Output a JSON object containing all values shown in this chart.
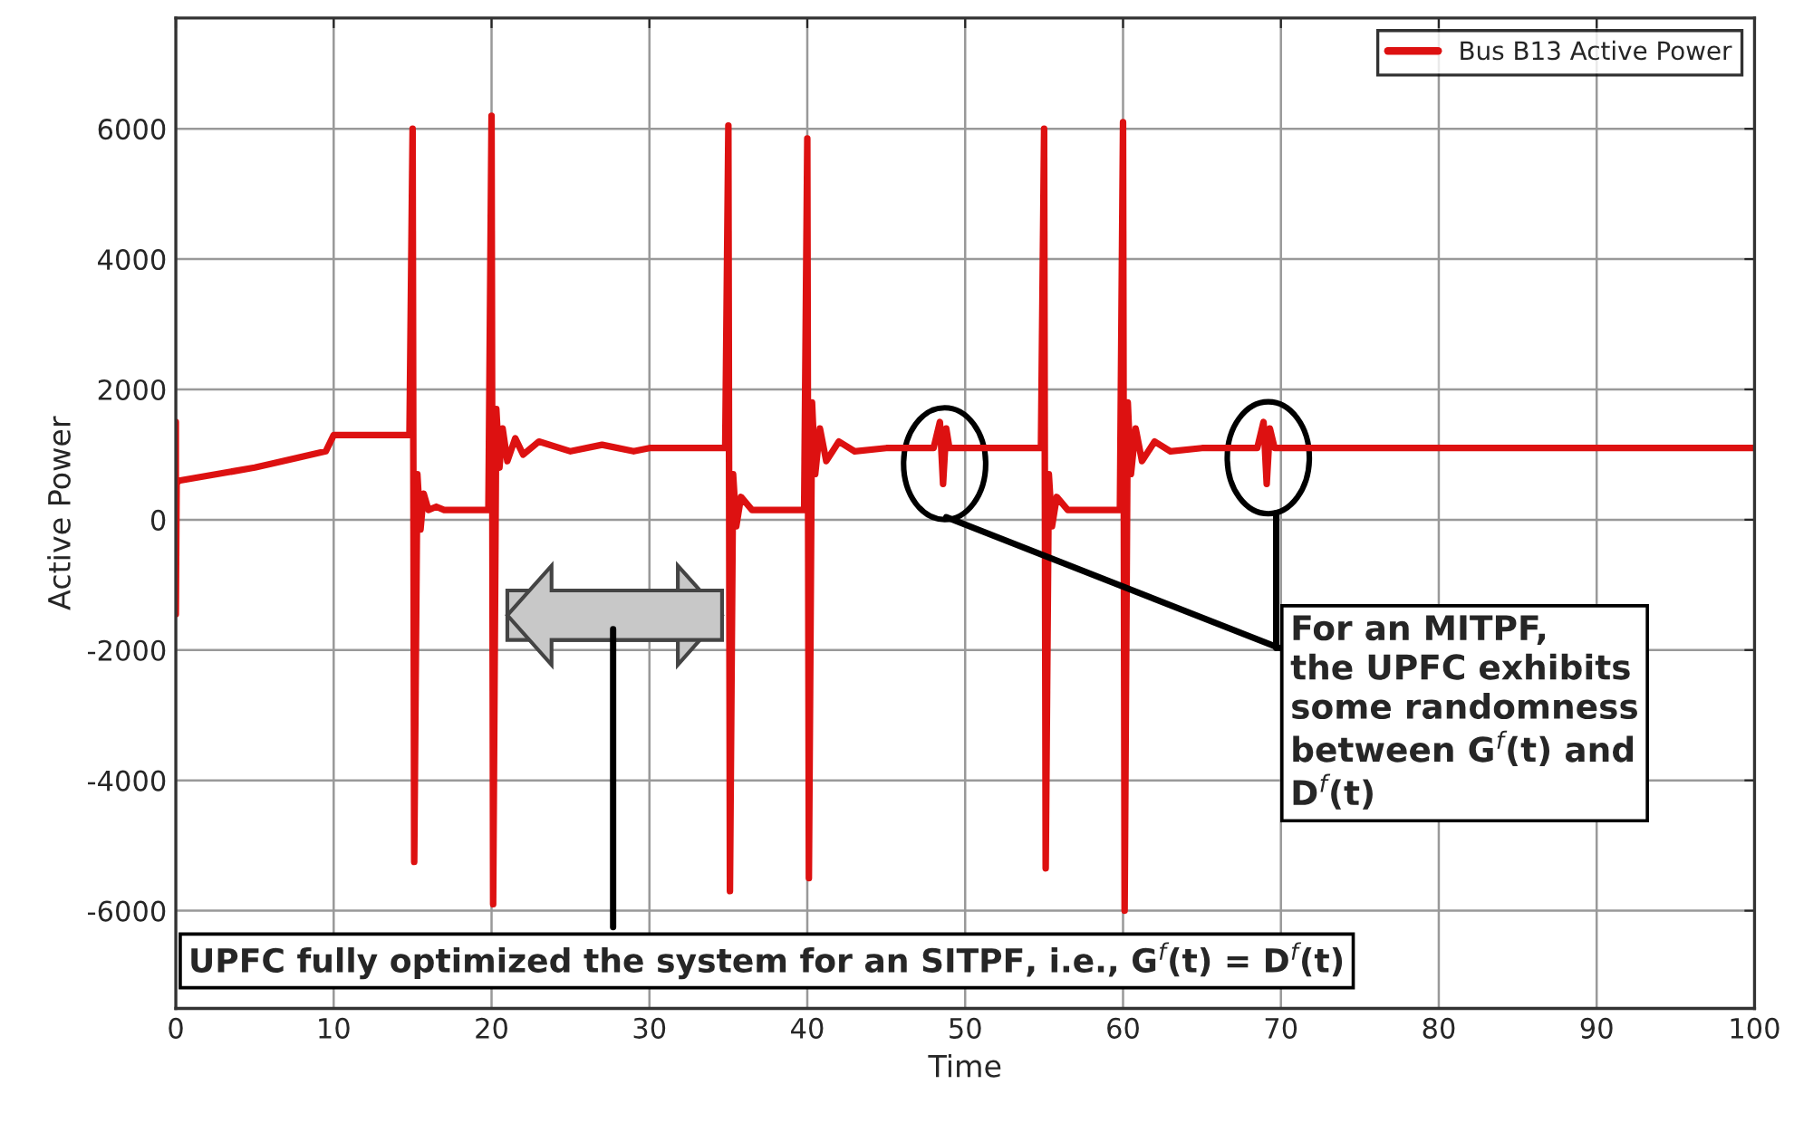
{
  "chart_data": {
    "type": "line",
    "xlabel": "Time",
    "ylabel": "Active Power",
    "x": [
      0,
      0,
      0.05,
      0.2,
      5,
      9.5,
      10,
      14.8,
      15,
      15.1,
      15.3,
      15.5,
      15.7,
      16,
      16.5,
      17,
      19.8,
      20,
      20.1,
      20.3,
      20.5,
      20.7,
      21,
      21.5,
      22,
      23,
      25,
      27,
      29,
      30,
      34.8,
      35,
      35.1,
      35.3,
      35.5,
      35.8,
      36.5,
      37,
      39.8,
      40,
      40.1,
      40.3,
      40.5,
      40.8,
      41.2,
      42,
      43,
      45,
      48,
      48.4,
      48.6,
      48.8,
      49,
      50,
      54.8,
      55,
      55.1,
      55.3,
      55.5,
      55.8,
      56.5,
      57,
      59.8,
      60,
      60.1,
      60.3,
      60.5,
      60.8,
      61.2,
      62,
      63,
      65,
      68.5,
      68.9,
      69.1,
      69.3,
      69.6,
      75,
      100
    ],
    "series": [
      {
        "name": "Bus B13 Active Power",
        "color": "#dd1111",
        "values": [
          1500,
          -1450,
          550,
          600,
          800,
          1050,
          1300,
          1300,
          6000,
          -5250,
          700,
          -150,
          400,
          150,
          200,
          150,
          150,
          6200,
          -5900,
          1700,
          800,
          1400,
          900,
          1250,
          1000,
          1200,
          1050,
          1150,
          1050,
          1100,
          1100,
          6050,
          -5700,
          700,
          -100,
          350,
          150,
          150,
          150,
          5850,
          -5500,
          1800,
          700,
          1400,
          900,
          1200,
          1050,
          1100,
          1100,
          1500,
          550,
          1400,
          1100,
          1100,
          1100,
          6000,
          -5350,
          700,
          -100,
          350,
          150,
          150,
          150,
          6100,
          -6000,
          1800,
          700,
          1400,
          900,
          1200,
          1050,
          1100,
          1100,
          1500,
          550,
          1400,
          1100,
          1100,
          1100
        ]
      }
    ],
    "xlim": [
      0,
      100
    ],
    "ylim": [
      -7500,
      7700
    ],
    "xticks": [
      0,
      10,
      20,
      30,
      40,
      50,
      60,
      70,
      80,
      90,
      100
    ],
    "yticks": [
      -6000,
      -4000,
      -2000,
      0,
      2000,
      4000,
      6000
    ],
    "grid": true,
    "legend": "top right",
    "marker": "none",
    "line_style": "solid",
    "annotations": [
      "For an MITPF,\nthe UPFC exhibits\nsome randomness\nbetween G$^{f}$(t) and\nD$^{f}$(t)",
      "UPFC fully optimized the system for an SITPF, i.e., G$^{f}$(t) = D$^{f}$(t)"
    ]
  }
}
